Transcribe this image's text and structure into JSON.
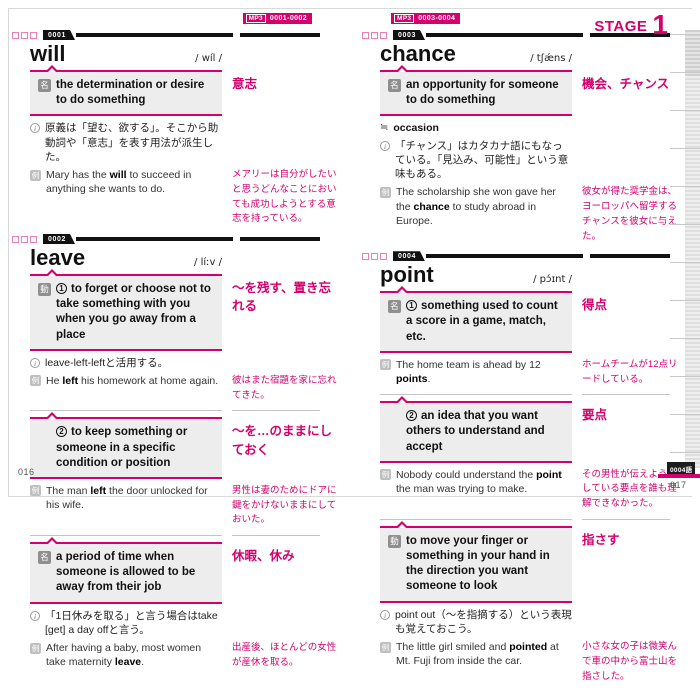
{
  "colors": {
    "accent": "#d4006e",
    "box_bg": "#ededed",
    "rule": "#111111"
  },
  "stage": {
    "label": "STAGE",
    "number": "1"
  },
  "count_badge": "0004語",
  "icons": {
    "info": "i",
    "example": "例",
    "synonym": "≒",
    "pos_noun": "名",
    "pos_verb": "動"
  },
  "pages": {
    "left": {
      "mp3": {
        "label": "MP3",
        "range": "0001-0002"
      },
      "page_number": "016",
      "entries": [
        {
          "number": "0001",
          "headword": "will",
          "pronunciation": "/ wíl /",
          "senses": [
            {
              "pos": "名",
              "sense_num": "",
              "definition": "the determination or desire to do something",
              "meaning_ja": "意志",
              "rows": [
                {
                  "type": "note",
                  "segments": [
                    {
                      "t": "原義は「望む、欲する」。そこから助動詞や「意志」を表す用法が派生した。"
                    }
                  ],
                  "ja": ""
                },
                {
                  "type": "example",
                  "segments": [
                    {
                      "t": "Mary has the "
                    },
                    {
                      "t": "will",
                      "b": true
                    },
                    {
                      "t": " to succeed in anything she wants to do."
                    }
                  ],
                  "ja": "メアリーは自分がしたいと思うどんなことにおいても成功しようとする意志を持っている。"
                }
              ]
            }
          ]
        },
        {
          "number": "0002",
          "headword": "leave",
          "pronunciation": "/ líːv /",
          "senses": [
            {
              "pos": "動",
              "sense_num": "1",
              "definition": "to forget or choose not to take something with you when you go away from a place",
              "meaning_ja": "〜を残す、置き忘れる",
              "rows": [
                {
                  "type": "note",
                  "segments": [
                    {
                      "t": "leave-left-leftと活用する。"
                    }
                  ],
                  "ja": ""
                },
                {
                  "type": "example",
                  "segments": [
                    {
                      "t": "He "
                    },
                    {
                      "t": "left",
                      "b": true
                    },
                    {
                      "t": " his homework at home again."
                    }
                  ],
                  "ja": "彼はまた宿題を家に忘れてきた。"
                }
              ]
            },
            {
              "pos": "",
              "sense_num": "2",
              "definition": "to keep something or someone in a specific condition or position",
              "meaning_ja": "〜を…のままにしておく",
              "rows": [
                {
                  "type": "example",
                  "segments": [
                    {
                      "t": "The man "
                    },
                    {
                      "t": "left",
                      "b": true
                    },
                    {
                      "t": " the door unlocked for his wife."
                    }
                  ],
                  "ja": "男性は妻のためにドアに鍵をかけないままにしておいた。"
                }
              ]
            },
            {
              "pos": "名",
              "sense_num": "",
              "definition": "a period of time when someone is allowed to be away from their job",
              "meaning_ja": "休暇、休み",
              "rows": [
                {
                  "type": "note",
                  "segments": [
                    {
                      "t": "「1日休みを取る」と言う場合はtake [get] a day offと言う。"
                    }
                  ],
                  "ja": ""
                },
                {
                  "type": "example",
                  "segments": [
                    {
                      "t": "After having a baby, most women take maternity "
                    },
                    {
                      "t": "leave",
                      "b": true
                    },
                    {
                      "t": "."
                    }
                  ],
                  "ja": "出産後、ほとんどの女性が産休を取る。"
                }
              ]
            }
          ]
        }
      ]
    },
    "right": {
      "mp3": {
        "label": "MP3",
        "range": "0003-0004"
      },
      "page_number": "017",
      "entries": [
        {
          "number": "0003",
          "headword": "chance",
          "pronunciation": "/ tʃǽns /",
          "senses": [
            {
              "pos": "名",
              "sense_num": "",
              "definition": "an opportunity for someone to do something",
              "meaning_ja": "機会、チャンス",
              "rows": [
                {
                  "type": "syn",
                  "segments": [
                    {
                      "t": "occasion"
                    }
                  ],
                  "ja": ""
                },
                {
                  "type": "note",
                  "segments": [
                    {
                      "t": "「チャンス」はカタカナ語にもなっている。「見込み、可能性」という意味もある。"
                    }
                  ],
                  "ja": ""
                },
                {
                  "type": "example",
                  "segments": [
                    {
                      "t": "The scholarship she won gave her the "
                    },
                    {
                      "t": "chance",
                      "b": true
                    },
                    {
                      "t": " to study abroad in Europe."
                    }
                  ],
                  "ja": "彼女が得た奨学金は、ヨーロッパへ留学するチャンスを彼女に与えた。"
                }
              ]
            }
          ]
        },
        {
          "number": "0004",
          "headword": "point",
          "pronunciation": "/ pɔ́ɪnt /",
          "senses": [
            {
              "pos": "名",
              "sense_num": "1",
              "definition": "something used to count a score in a game, match, etc.",
              "meaning_ja": "得点",
              "rows": [
                {
                  "type": "example",
                  "segments": [
                    {
                      "t": "The home team is ahead by 12 "
                    },
                    {
                      "t": "points",
                      "b": true
                    },
                    {
                      "t": "."
                    }
                  ],
                  "ja": "ホームチームが12点リードしている。"
                }
              ]
            },
            {
              "pos": "",
              "sense_num": "2",
              "definition": "an idea that you want others to understand and accept",
              "meaning_ja": "要点",
              "rows": [
                {
                  "type": "example",
                  "segments": [
                    {
                      "t": "Nobody could understand the "
                    },
                    {
                      "t": "point",
                      "b": true
                    },
                    {
                      "t": " the man was trying to make."
                    }
                  ],
                  "ja": "その男性が伝えようとしている要点を誰も理解できなかった。"
                }
              ]
            },
            {
              "pos": "動",
              "sense_num": "",
              "definition": "to move your finger or something in your hand in the direction you want someone to look",
              "meaning_ja": "指さす",
              "rows": [
                {
                  "type": "note",
                  "segments": [
                    {
                      "t": "point out（〜を指摘する）という表現も覚えておこう。"
                    }
                  ],
                  "ja": ""
                },
                {
                  "type": "example",
                  "segments": [
                    {
                      "t": "The little girl smiled and "
                    },
                    {
                      "t": "pointed",
                      "b": true
                    },
                    {
                      "t": " at Mt. Fuji from inside the car."
                    }
                  ],
                  "ja": "小さな女の子は微笑んで車の中から富士山を指さした。"
                }
              ]
            }
          ]
        }
      ]
    }
  }
}
